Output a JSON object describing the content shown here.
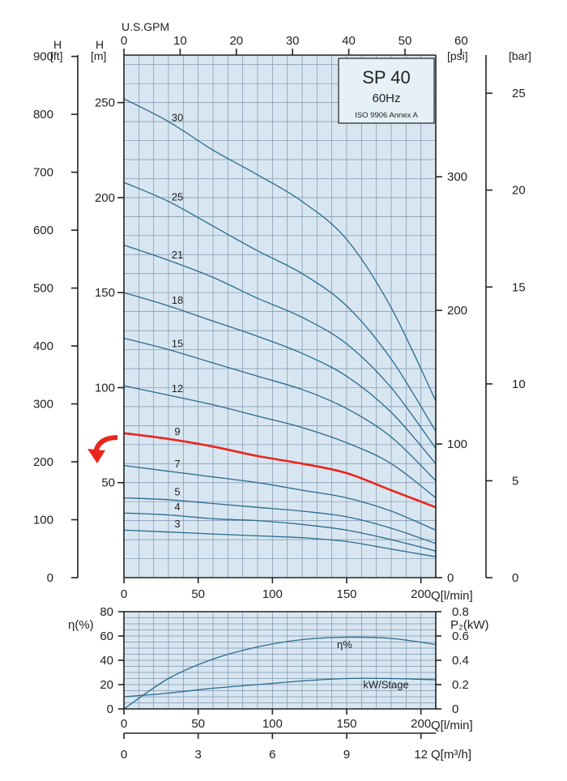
{
  "colors": {
    "plot_bg": "#d7e6f1",
    "grid": "#7f94aa",
    "curve": "#2b6a8e",
    "highlight": "#e8261c",
    "axis": "#222222"
  },
  "legend_box": {
    "model": "SP 40",
    "freq": "60Hz",
    "standard": "ISO 9906 Annex A"
  },
  "axes": {
    "top_title": "U.S.GPM",
    "top_ticks": [
      "0",
      "10",
      "20",
      "30",
      "40",
      "50",
      "60"
    ],
    "h_ft_label": "H",
    "h_ft_unit": "[ft]",
    "h_m_label": "H",
    "h_m_unit": "[m]",
    "ft_ticks": [
      "0",
      "100",
      "200",
      "300",
      "400",
      "500",
      "600",
      "700",
      "800",
      "900"
    ],
    "m_ticks": [
      "50",
      "100",
      "150",
      "200",
      "250"
    ],
    "psi_unit": "[psi]",
    "psi_ticks": [
      "0",
      "100",
      "200",
      "300"
    ],
    "bar_unit": "[bar]",
    "bar_ticks": [
      "0",
      "5",
      "10",
      "15",
      "20",
      "25"
    ],
    "q_ticks_main": [
      "0",
      "50",
      "100",
      "150",
      "200"
    ],
    "q_label": "Q[l/min]",
    "eta_label": "η(%)",
    "eta_ticks": [
      "0",
      "20",
      "40",
      "60",
      "80"
    ],
    "p2_label": "P₂(kW)",
    "p2_ticks": [
      "0",
      "0.2",
      "0.4",
      "0.6",
      "0.8"
    ],
    "q_ticks_low": [
      "0",
      "50",
      "100",
      "150",
      "200"
    ],
    "q_label_low": "Q[l/min]",
    "q3_ticks": [
      "0",
      "3",
      "6",
      "9",
      "12"
    ],
    "q3_label": "Q[m³/h]"
  },
  "chart_data": [
    {
      "type": "line",
      "title": "SP 40 60Hz",
      "xlabel": "Q[l/min]",
      "ylabel": "H [m]",
      "xlim": [
        0,
        210
      ],
      "ylim": [
        0,
        275
      ],
      "x": [
        0,
        30,
        60,
        90,
        120,
        150,
        180,
        210
      ],
      "highlighted_series": "9",
      "series": [
        {
          "name": "30",
          "values": [
            252,
            240,
            225,
            212,
            198,
            178,
            142,
            93
          ]
        },
        {
          "name": "25",
          "values": [
            208,
            198,
            185,
            172,
            160,
            143,
            115,
            77
          ]
        },
        {
          "name": "21",
          "values": [
            175,
            167,
            158,
            147,
            137,
            123,
            100,
            68
          ]
        },
        {
          "name": "18",
          "values": [
            150,
            143,
            135,
            127,
            118,
            106,
            87,
            60
          ]
        },
        {
          "name": "15",
          "values": [
            126,
            120,
            113,
            106,
            99,
            89,
            74,
            51
          ]
        },
        {
          "name": "12",
          "values": [
            101,
            96,
            91,
            85,
            79,
            71,
            60,
            42
          ]
        },
        {
          "name": "9",
          "values": [
            76,
            73,
            69,
            64,
            60,
            55,
            46,
            37
          ]
        },
        {
          "name": "7",
          "values": [
            59,
            56,
            53,
            50,
            46,
            42,
            35,
            25
          ]
        },
        {
          "name": "5",
          "values": [
            42,
            41,
            39,
            37,
            35,
            32,
            26,
            18
          ]
        },
        {
          "name": "4",
          "values": [
            34,
            33,
            31,
            30,
            28,
            25,
            20,
            14
          ]
        },
        {
          "name": "3",
          "values": [
            25,
            24,
            23,
            22,
            21,
            19,
            15,
            11
          ]
        }
      ]
    },
    {
      "type": "line",
      "title": "",
      "xlabel": "Q[l/min]",
      "ylabel": "η(%)",
      "xlim": [
        0,
        210
      ],
      "ylim": [
        0,
        80
      ],
      "y2label": "P₂(kW)",
      "y2lim": [
        0,
        0.8
      ],
      "x": [
        0,
        30,
        60,
        90,
        120,
        150,
        180,
        210
      ],
      "series": [
        {
          "name": "η%",
          "axis": "left",
          "values": [
            0,
            25,
            41,
            51,
            57,
            59,
            58,
            53
          ]
        },
        {
          "name": "kW/Stage",
          "axis": "right",
          "values": [
            0.1,
            0.13,
            0.17,
            0.2,
            0.23,
            0.25,
            0.25,
            0.24
          ]
        }
      ]
    }
  ]
}
